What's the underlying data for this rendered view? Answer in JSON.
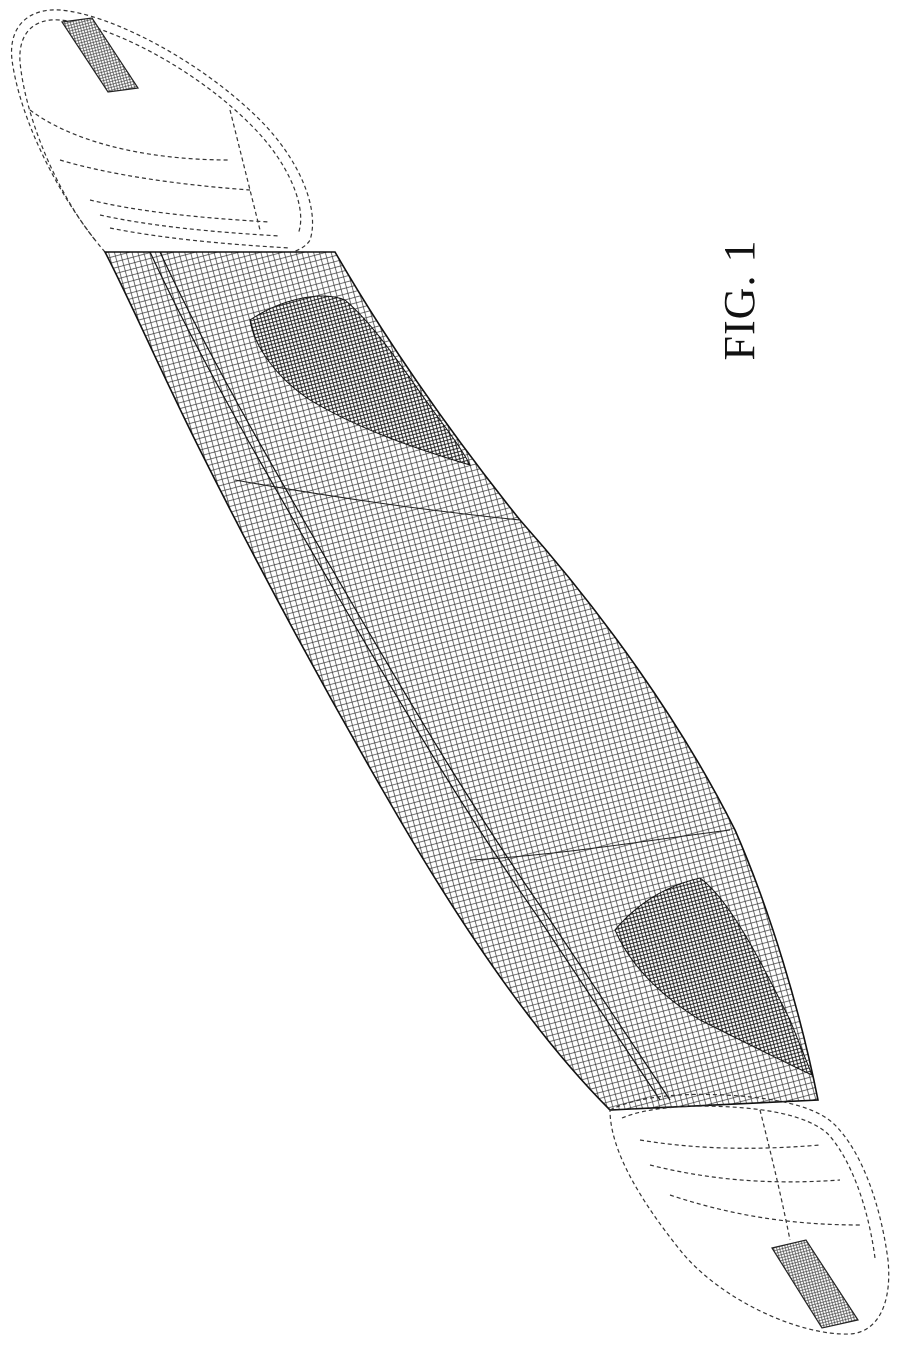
{
  "figure": {
    "label": "FIG. 1"
  }
}
